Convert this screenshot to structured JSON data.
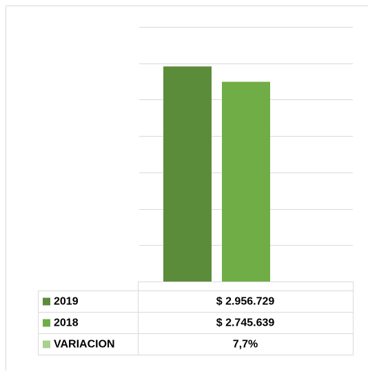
{
  "chart_data": {
    "type": "bar",
    "categories": [
      null
    ],
    "series": [
      {
        "name": "2019",
        "color": "#5b8c3a",
        "values": [
          2956729
        ],
        "value_labels": [
          "$ 2.956.729"
        ]
      },
      {
        "name": "2018",
        "color": "#70ad47",
        "values": [
          2745639
        ],
        "value_labels": [
          "$ 2.745.639"
        ]
      },
      {
        "name": "VARIACION",
        "color": "#a9d18e",
        "values": [
          7.7
        ],
        "value_labels": [
          "7,7%"
        ]
      }
    ],
    "ylim": [
      0,
      3500000
    ],
    "yticks": [
      0,
      500000,
      1000000,
      1500000,
      2000000,
      2500000,
      3000000,
      3500000
    ],
    "grid": true,
    "legend": "data-table"
  }
}
